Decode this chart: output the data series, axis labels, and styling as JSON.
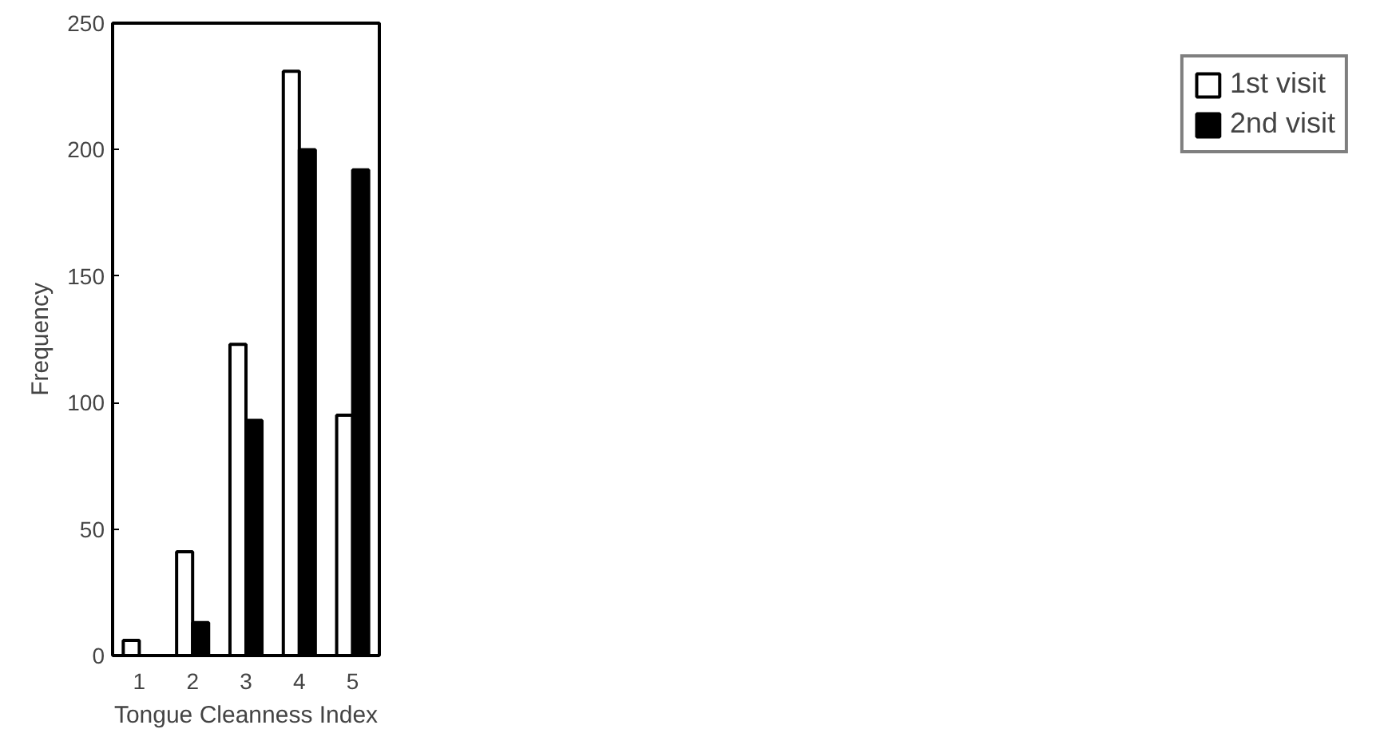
{
  "chart_data": {
    "type": "bar",
    "xlabel": "Tongue Cleanness Index",
    "ylabel": "Frequency",
    "categories": [
      "1",
      "2",
      "3",
      "4",
      "5"
    ],
    "series": [
      {
        "name": "1st visit",
        "color": "#ffffff",
        "values": [
          6,
          41,
          123,
          231,
          95
        ]
      },
      {
        "name": "2nd visit",
        "color": "#000000",
        "values": [
          0,
          13,
          93,
          200,
          192
        ]
      }
    ],
    "ylim": [
      0,
      250
    ],
    "yticks": [
      0,
      50,
      100,
      150,
      200,
      250
    ],
    "grid": false,
    "legend": "right"
  }
}
